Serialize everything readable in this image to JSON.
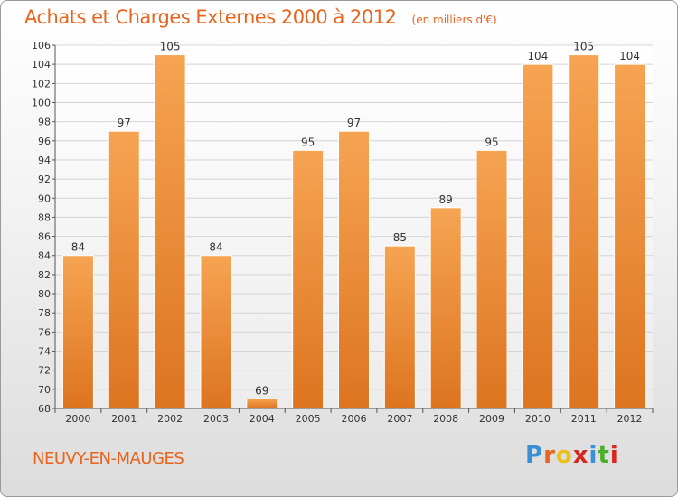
{
  "header": {
    "title": "Achats et Charges Externes 2000 à 2012",
    "unit": "(en milliers d'€)"
  },
  "footer": {
    "commune": "NEUVY-EN-MAUGES",
    "logo_text": "Proxiti",
    "logo_colors": [
      "#3a8fd6",
      "#e8641c",
      "#e8c11c",
      "#d6281c",
      "#3a8fd6",
      "#4caf2a",
      "#d6281c"
    ]
  },
  "colors": {
    "title": "#e8641c",
    "bar_light": "#f6a452",
    "bar_dark": "#dd7420",
    "axis": "#555555",
    "grid": "#d4d4d4"
  },
  "chart_data": {
    "type": "bar",
    "title": "Achats et Charges Externes 2000 à 2012",
    "categories": [
      "2000",
      "2001",
      "2002",
      "2003",
      "2004",
      "2005",
      "2006",
      "2007",
      "2008",
      "2009",
      "2010",
      "2011",
      "2012"
    ],
    "values": [
      84,
      97,
      105,
      84,
      69,
      95,
      97,
      85,
      89,
      95,
      104,
      105,
      104
    ],
    "ylim": [
      68,
      106
    ],
    "yticks": [
      68,
      70,
      72,
      74,
      76,
      78,
      80,
      82,
      84,
      86,
      88,
      90,
      92,
      94,
      96,
      98,
      100,
      102,
      104,
      106
    ],
    "grid": true,
    "data_labels": true
  }
}
